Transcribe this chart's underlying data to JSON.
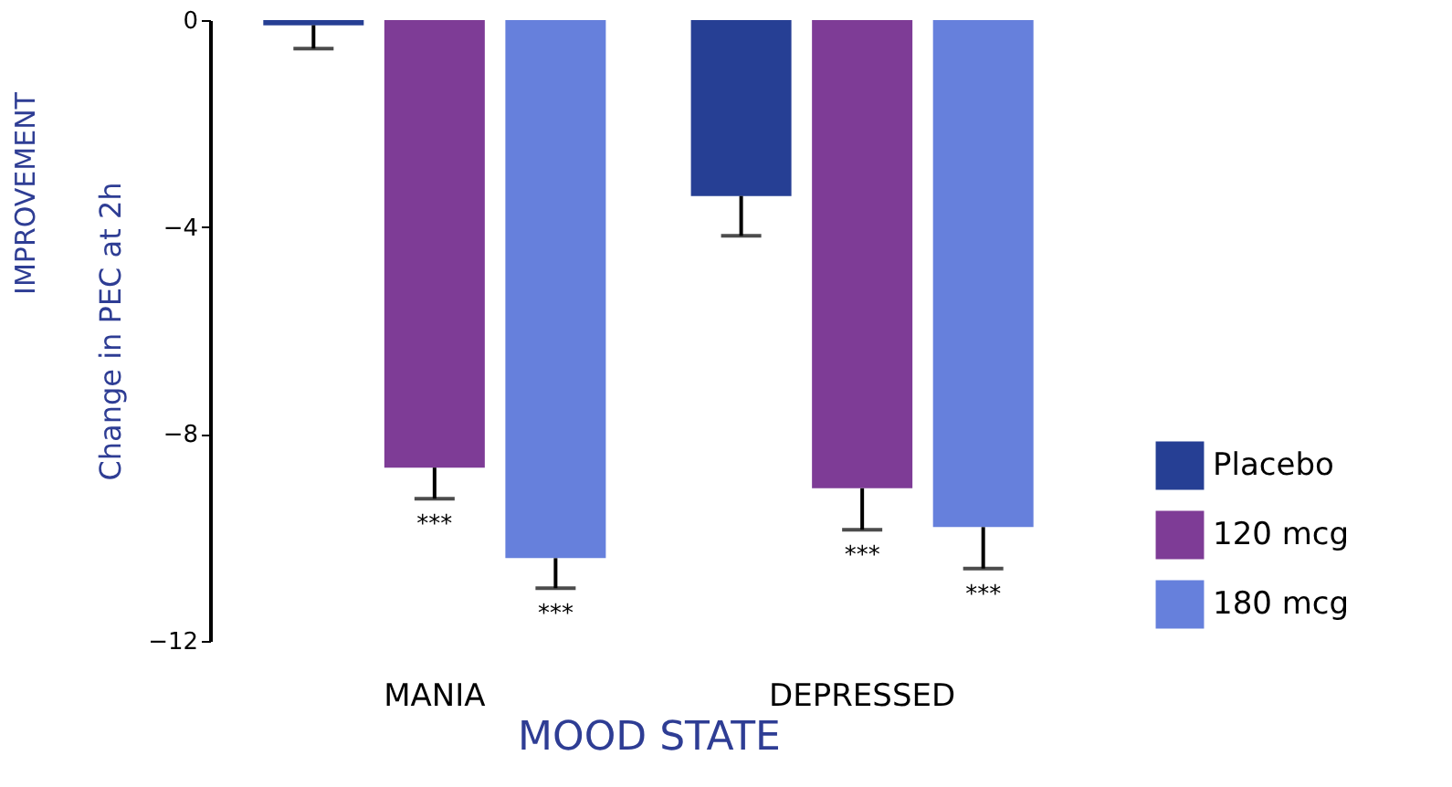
{
  "chart_data": {
    "type": "bar",
    "xlabel": "MOOD STATE",
    "ylabel": "Change in PEC at 2h",
    "categories": [
      "MANIA",
      "DEPRESSED"
    ],
    "series": [
      {
        "name": "Placebo",
        "color": "#263f94",
        "values": [
          -0.1,
          -3.4
        ],
        "errors": [
          [
            -0.55,
            -0.1
          ],
          [
            -4.17,
            -3.4
          ]
        ]
      },
      {
        "name": "120 mcg",
        "color": "#7e3c96",
        "values": [
          -8.65,
          -9.05
        ],
        "errors": [
          [
            -9.25,
            -8.65
          ],
          [
            -9.85,
            -9.05
          ]
        ],
        "value_labels": [
          "***",
          "***"
        ]
      },
      {
        "name": "180 mcg",
        "color": "#6680dc",
        "values": [
          -10.4,
          -9.8
        ],
        "errors": [
          [
            -10.98,
            -10.4
          ],
          [
            -10.6,
            -9.8
          ]
        ],
        "value_labels": [
          "***",
          "***"
        ]
      }
    ],
    "ylim": [
      -12,
      0
    ],
    "yticks": [
      0,
      -4,
      -8,
      -12
    ],
    "grid": false,
    "legend": "bottom right",
    "annotations": [
      "IMPROVEMENT"
    ]
  }
}
